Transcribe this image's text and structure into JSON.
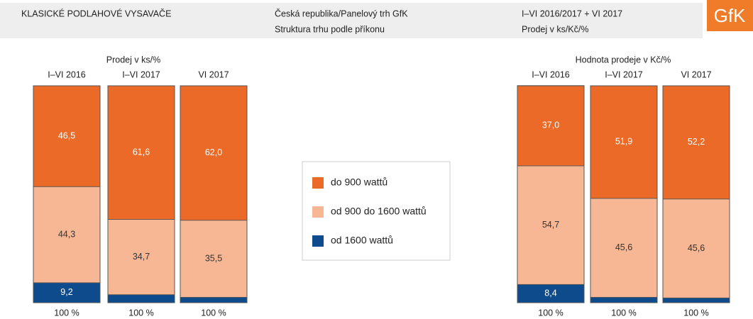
{
  "header": {
    "title": "KLASICKÉ PODLAHOVÉ VYSAVAČE",
    "source": "Česká republika/Panelový trh GfK",
    "subtitle": "Struktura trhu podle příkonu",
    "period": "I–VI 2016/2017 + VI 2017",
    "unit": "Prodej v ks/Kč/%",
    "logo": "GfK"
  },
  "chart_data": [
    {
      "type": "bar",
      "stacked": true,
      "title": "Prodej v ks/%",
      "categories": [
        "I–VI 2016",
        "I–VI 2017",
        "VI 2017"
      ],
      "ylim": [
        0,
        100
      ],
      "total_labels": [
        "100 %",
        "100 %",
        "100 %"
      ],
      "series": [
        {
          "name": "do 900 wattů",
          "color": "#ec6a27",
          "label_color": "#ffffff",
          "values": [
            46.5,
            61.6,
            62.0
          ],
          "value_labels": [
            "46,5",
            "61,6",
            "62,0"
          ]
        },
        {
          "name": "od 900 do 1600 wattů",
          "color": "#f8b794",
          "label_color": "#333333",
          "values": [
            44.3,
            34.7,
            35.5
          ],
          "value_labels": [
            "44,3",
            "34,7",
            "35,5"
          ]
        },
        {
          "name": "od 1600 wattů",
          "color": "#0d4b8c",
          "label_color": "#ffffff",
          "values": [
            9.2,
            3.7,
            2.5
          ],
          "value_labels": [
            "9,2",
            null,
            null
          ]
        }
      ]
    },
    {
      "type": "bar",
      "stacked": true,
      "title": "Hodnota prodeje v Kč/%",
      "categories": [
        "I–VI 2016",
        "I–VI 2017",
        "VI 2017"
      ],
      "ylim": [
        0,
        100
      ],
      "total_labels": [
        "100 %",
        "100 %",
        "100 %"
      ],
      "series": [
        {
          "name": "do 900 wattů",
          "color": "#ec6a27",
          "label_color": "#ffffff",
          "values": [
            37.0,
            51.9,
            52.2
          ],
          "value_labels": [
            "37,0",
            "51,9",
            "52,2"
          ]
        },
        {
          "name": "od 900 do 1600 wattů",
          "color": "#f8b794",
          "label_color": "#333333",
          "values": [
            54.7,
            45.6,
            45.6
          ],
          "value_labels": [
            "54,7",
            "45,6",
            "45,6"
          ]
        },
        {
          "name": "od 1600 wattů",
          "color": "#0d4b8c",
          "label_color": "#ffffff",
          "values": [
            8.4,
            2.5,
            2.2
          ],
          "value_labels": [
            "8,4",
            null,
            null
          ]
        }
      ]
    }
  ]
}
